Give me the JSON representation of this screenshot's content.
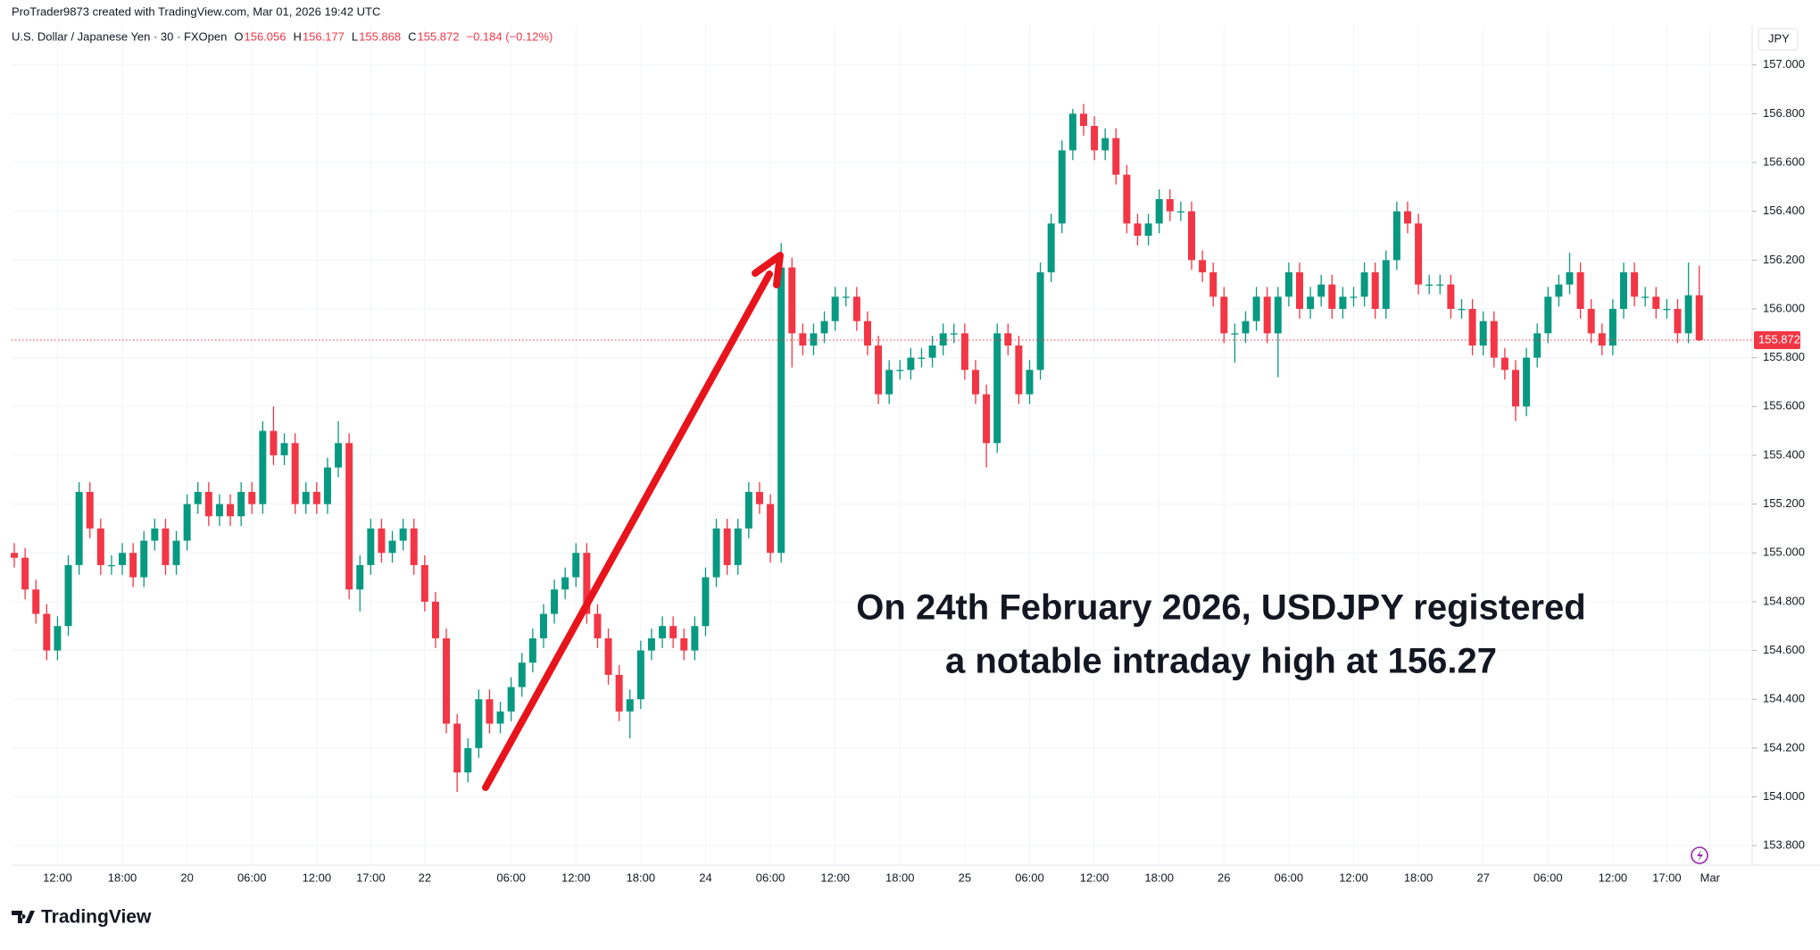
{
  "header": {
    "credit": "ProTrader9873 created with TradingView.com, Mar 01, 2026 19:42 UTC",
    "symbol": "U.S. Dollar / Japanese Yen · 30 · FXOpen",
    "ohlc": [
      {
        "key": "O",
        "value": "156.056"
      },
      {
        "key": "H",
        "value": "156.177"
      },
      {
        "key": "L",
        "value": "155.868"
      },
      {
        "key": "C",
        "value": "155.872"
      }
    ],
    "change": "−0.184 (−0.12%)",
    "currency": "JPY"
  },
  "footer": {
    "logo": "TradingView"
  },
  "chart_data": {
    "type": "candlestick",
    "up_color": "#089981",
    "down_color": "#f23645",
    "grid": true,
    "annotations": [
      "On 24th February 2026, USDJPY registered",
      "a notable intraday high at 156.27"
    ],
    "ylim": [
      153.72,
      157.16
    ],
    "yticks": [
      {
        "value": 153.8,
        "label": "153.800"
      },
      {
        "value": 154.0,
        "label": "154.000"
      },
      {
        "value": 154.2,
        "label": "154.200"
      },
      {
        "value": 154.4,
        "label": "154.400"
      },
      {
        "value": 154.6,
        "label": "154.600"
      },
      {
        "value": 154.8,
        "label": "154.800"
      },
      {
        "value": 155.0,
        "label": "155.000"
      },
      {
        "value": 155.2,
        "label": "155.200"
      },
      {
        "value": 155.4,
        "label": "155.400"
      },
      {
        "value": 155.6,
        "label": "155.600"
      },
      {
        "value": 155.8,
        "label": "155.800"
      },
      {
        "value": 156.0,
        "label": "156.000"
      },
      {
        "value": 156.2,
        "label": "156.200"
      },
      {
        "value": 156.4,
        "label": "156.400"
      },
      {
        "value": 156.6,
        "label": "156.600"
      },
      {
        "value": 156.8,
        "label": "156.800"
      },
      {
        "value": 157.0,
        "label": "157.000"
      }
    ],
    "xlim": [
      -0.25,
      160.9
    ],
    "xticks": [
      {
        "value": 4,
        "label": "12:00"
      },
      {
        "value": 10,
        "label": "18:00"
      },
      {
        "value": 16,
        "label": "20"
      },
      {
        "value": 22,
        "label": "06:00"
      },
      {
        "value": 28,
        "label": "12:00"
      },
      {
        "value": 33,
        "label": "17:00"
      },
      {
        "value": 38,
        "label": "22"
      },
      {
        "value": 46,
        "label": "06:00"
      },
      {
        "value": 52,
        "label": "12:00"
      },
      {
        "value": 58,
        "label": "18:00"
      },
      {
        "value": 64,
        "label": "24"
      },
      {
        "value": 70,
        "label": "06:00"
      },
      {
        "value": 76,
        "label": "12:00"
      },
      {
        "value": 82,
        "label": "18:00"
      },
      {
        "value": 88,
        "label": "25"
      },
      {
        "value": 94,
        "label": "06:00"
      },
      {
        "value": 100,
        "label": "12:00"
      },
      {
        "value": 106,
        "label": "18:00"
      },
      {
        "value": 112,
        "label": "26"
      },
      {
        "value": 118,
        "label": "06:00"
      },
      {
        "value": 124,
        "label": "12:00"
      },
      {
        "value": 130,
        "label": "18:00"
      },
      {
        "value": 136,
        "label": "27"
      },
      {
        "value": 142,
        "label": "06:00"
      },
      {
        "value": 148,
        "label": "12:00"
      },
      {
        "value": 153,
        "label": "17:00"
      },
      {
        "value": 157,
        "label": "Mar"
      }
    ],
    "open": [
      155.0,
      154.98,
      154.85,
      154.75,
      154.6,
      154.7,
      154.95,
      155.25,
      155.1,
      154.95,
      154.95,
      155.0,
      154.9,
      155.05,
      155.1,
      154.95,
      155.05,
      155.2,
      155.25,
      155.15,
      155.2,
      155.15,
      155.25,
      155.2,
      155.5,
      155.4,
      155.45,
      155.2,
      155.25,
      155.2,
      155.35,
      155.45,
      154.85,
      154.95,
      155.1,
      155.0,
      155.05,
      155.1,
      154.95,
      154.8,
      154.65,
      154.3,
      154.1,
      154.2,
      154.4,
      154.3,
      154.35,
      154.45,
      154.55,
      154.65,
      154.75,
      154.85,
      154.9,
      155.0,
      154.75,
      154.65,
      154.5,
      154.35,
      154.4,
      154.6,
      154.65,
      154.7,
      154.65,
      154.6,
      154.7,
      154.9,
      155.1,
      154.95,
      155.1,
      155.25,
      155.2,
      155.0,
      156.17,
      155.9,
      155.85,
      155.9,
      155.95,
      156.05,
      156.05,
      155.95,
      155.85,
      155.65,
      155.75,
      155.75,
      155.8,
      155.8,
      155.85,
      155.9,
      155.9,
      155.75,
      155.65,
      155.45,
      155.9,
      155.85,
      155.65,
      155.75,
      156.15,
      156.35,
      156.65,
      156.8,
      156.75,
      156.65,
      156.7,
      156.55,
      156.35,
      156.3,
      156.35,
      156.45,
      156.4,
      156.4,
      156.2,
      156.15,
      156.05,
      155.9,
      155.9,
      155.95,
      156.05,
      155.9,
      156.05,
      156.15,
      156.0,
      156.05,
      156.1,
      156.0,
      156.05,
      156.05,
      156.15,
      156.0,
      156.2,
      156.4,
      156.35,
      156.1,
      156.1,
      156.1,
      156.0,
      156.0,
      155.85,
      155.95,
      155.8,
      155.75,
      155.6,
      155.8,
      155.9,
      156.05,
      156.1,
      156.15,
      156.0,
      155.9,
      155.85,
      156.0,
      156.15,
      156.05,
      156.05,
      156.0,
      156.0,
      155.9,
      156.056
    ],
    "high": [
      155.04,
      155.02,
      154.89,
      154.79,
      154.74,
      154.99,
      155.29,
      155.29,
      155.14,
      154.99,
      155.04,
      155.04,
      155.09,
      155.14,
      155.14,
      155.09,
      155.24,
      155.29,
      155.29,
      155.24,
      155.24,
      155.29,
      155.29,
      155.54,
      155.6,
      155.49,
      155.49,
      155.29,
      155.29,
      155.39,
      155.54,
      155.49,
      154.99,
      155.14,
      155.14,
      155.09,
      155.14,
      155.14,
      154.99,
      154.84,
      154.69,
      154.34,
      154.24,
      154.44,
      154.44,
      154.39,
      154.49,
      154.59,
      154.69,
      154.79,
      154.89,
      154.94,
      155.04,
      155.04,
      154.79,
      154.69,
      154.54,
      154.44,
      154.64,
      154.69,
      154.74,
      154.74,
      154.69,
      154.74,
      154.94,
      155.14,
      155.14,
      155.14,
      155.29,
      155.29,
      155.24,
      156.27,
      156.21,
      155.94,
      155.94,
      155.99,
      156.09,
      156.09,
      156.09,
      155.99,
      155.89,
      155.79,
      155.79,
      155.84,
      155.84,
      155.89,
      155.94,
      155.94,
      155.94,
      155.79,
      155.69,
      155.94,
      155.94,
      155.89,
      155.79,
      156.19,
      156.39,
      156.69,
      156.82,
      156.84,
      156.79,
      156.74,
      156.74,
      156.59,
      156.39,
      156.39,
      156.49,
      156.49,
      156.44,
      156.44,
      156.24,
      156.19,
      156.09,
      155.94,
      155.99,
      156.09,
      156.09,
      156.09,
      156.19,
      156.19,
      156.09,
      156.14,
      156.14,
      156.09,
      156.09,
      156.19,
      156.19,
      156.24,
      156.44,
      156.44,
      156.39,
      156.14,
      156.14,
      156.14,
      156.04,
      156.04,
      155.99,
      155.99,
      155.84,
      155.79,
      155.84,
      155.94,
      156.09,
      156.14,
      156.23,
      156.19,
      156.04,
      155.94,
      156.04,
      156.19,
      156.19,
      156.09,
      156.09,
      156.04,
      156.04,
      156.19,
      156.177
    ],
    "low": [
      154.94,
      154.81,
      154.71,
      154.56,
      154.56,
      154.66,
      154.91,
      155.06,
      154.91,
      154.91,
      154.91,
      154.86,
      154.86,
      155.01,
      154.91,
      154.91,
      155.01,
      155.16,
      155.11,
      155.11,
      155.11,
      155.11,
      155.16,
      155.16,
      155.36,
      155.36,
      155.16,
      155.16,
      155.16,
      155.16,
      155.31,
      154.81,
      154.76,
      154.91,
      154.96,
      154.96,
      155.01,
      154.91,
      154.76,
      154.61,
      154.26,
      154.02,
      154.06,
      154.16,
      154.26,
      154.26,
      154.31,
      154.41,
      154.51,
      154.61,
      154.71,
      154.81,
      154.86,
      154.71,
      154.61,
      154.46,
      154.31,
      154.24,
      154.36,
      154.56,
      154.61,
      154.61,
      154.56,
      154.56,
      154.66,
      154.86,
      154.91,
      154.91,
      155.06,
      155.16,
      154.96,
      154.96,
      155.76,
      155.81,
      155.81,
      155.86,
      155.91,
      156.01,
      155.91,
      155.81,
      155.61,
      155.61,
      155.71,
      155.71,
      155.76,
      155.76,
      155.81,
      155.86,
      155.71,
      155.61,
      155.35,
      155.41,
      155.81,
      155.61,
      155.61,
      155.71,
      156.11,
      156.31,
      156.61,
      156.71,
      156.61,
      156.61,
      156.51,
      156.31,
      156.26,
      156.26,
      156.31,
      156.36,
      156.36,
      156.16,
      156.11,
      156.01,
      155.86,
      155.78,
      155.86,
      155.91,
      155.86,
      155.72,
      156.01,
      155.96,
      155.96,
      156.01,
      155.96,
      155.96,
      156.01,
      156.01,
      155.96,
      155.96,
      156.16,
      156.31,
      156.06,
      156.06,
      156.06,
      155.96,
      155.96,
      155.81,
      155.81,
      155.76,
      155.71,
      155.54,
      155.56,
      155.76,
      155.86,
      156.01,
      156.06,
      155.96,
      155.86,
      155.81,
      155.81,
      155.96,
      156.01,
      156.01,
      155.96,
      155.96,
      155.86,
      155.86,
      155.868
    ],
    "close": [
      154.98,
      154.85,
      154.75,
      154.6,
      154.7,
      154.95,
      155.25,
      155.1,
      154.95,
      154.95,
      155.0,
      154.9,
      155.05,
      155.1,
      154.95,
      155.05,
      155.2,
      155.25,
      155.15,
      155.2,
      155.15,
      155.25,
      155.2,
      155.5,
      155.4,
      155.45,
      155.2,
      155.25,
      155.2,
      155.35,
      155.45,
      154.85,
      154.95,
      155.1,
      155.0,
      155.05,
      155.1,
      154.95,
      154.8,
      154.65,
      154.3,
      154.1,
      154.2,
      154.4,
      154.3,
      154.35,
      154.45,
      154.55,
      154.65,
      154.75,
      154.85,
      154.9,
      155.0,
      154.75,
      154.65,
      154.5,
      154.35,
      154.4,
      154.6,
      154.65,
      154.7,
      154.65,
      154.6,
      154.7,
      154.9,
      155.1,
      154.95,
      155.1,
      155.25,
      155.2,
      155.0,
      156.17,
      155.9,
      155.85,
      155.9,
      155.95,
      156.05,
      156.05,
      155.95,
      155.85,
      155.65,
      155.75,
      155.75,
      155.8,
      155.8,
      155.85,
      155.9,
      155.9,
      155.75,
      155.65,
      155.45,
      155.9,
      155.85,
      155.65,
      155.75,
      156.15,
      156.35,
      156.65,
      156.8,
      156.75,
      156.65,
      156.7,
      156.55,
      156.35,
      156.3,
      156.35,
      156.45,
      156.4,
      156.4,
      156.2,
      156.15,
      156.05,
      155.9,
      155.9,
      155.95,
      156.05,
      155.9,
      156.05,
      156.15,
      156.0,
      156.05,
      156.1,
      156.0,
      156.05,
      156.05,
      156.15,
      156.0,
      156.2,
      156.4,
      156.35,
      156.1,
      156.1,
      156.1,
      156.0,
      156.0,
      155.85,
      155.95,
      155.8,
      155.75,
      155.6,
      155.8,
      155.9,
      156.05,
      156.1,
      156.15,
      156.0,
      155.9,
      155.85,
      156.0,
      156.15,
      156.05,
      156.05,
      156.0,
      156.0,
      155.9,
      156.056,
      155.872
    ]
  }
}
